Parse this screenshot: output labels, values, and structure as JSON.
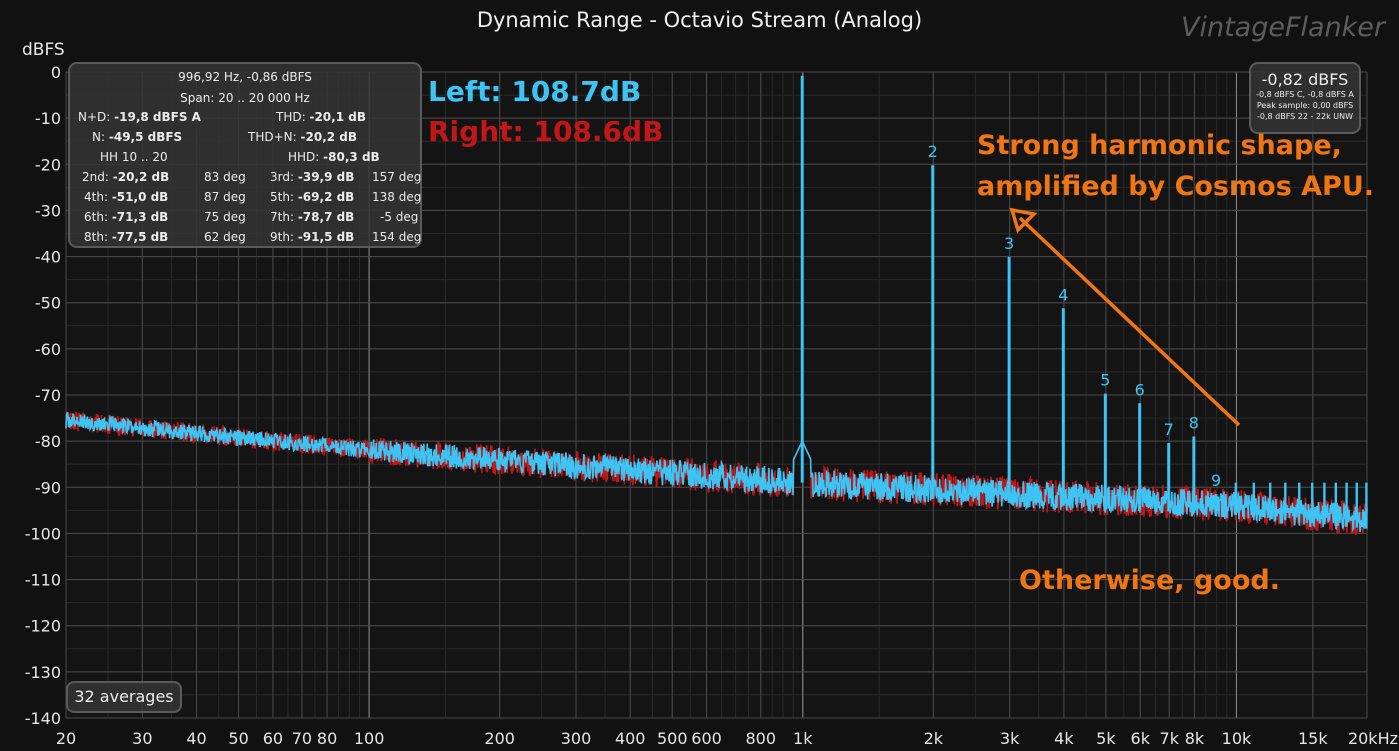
{
  "title": "Dynamic Range - Octavio Stream (Analog)",
  "watermark": "VintageFlanker",
  "info": {
    "header1": "996,92 Hz, -0,86 dBFS",
    "header2": "Span: 20 .. 20 000 Hz",
    "rows": [
      {
        "l_label": "N+D:",
        "l_value": "-19,8 dBFS A",
        "r_label": "THD:",
        "r_value": "-20,1 dB"
      },
      {
        "l_label": "N:",
        "l_value": "-49,5 dBFS",
        "r_label": "THD+N:",
        "r_value": "-20,2 dB"
      },
      {
        "l_label": "HH 10 .. 20",
        "l_value": "",
        "r_label": "HHD:",
        "r_value": "-80,3 dB"
      }
    ],
    "harmonics": [
      {
        "l_label": "2nd:",
        "l_value": "-20,2 dB",
        "l_phase": "83 deg",
        "r_label": "3rd:",
        "r_value": "-39,9 dB",
        "r_phase": "157 deg"
      },
      {
        "l_label": "4th:",
        "l_value": "-51,0 dB",
        "l_phase": "87 deg",
        "r_label": "5th:",
        "r_value": "-69,2 dB",
        "r_phase": "138 deg"
      },
      {
        "l_label": "6th:",
        "l_value": "-71,3 dB",
        "l_phase": "75 deg",
        "r_label": "7th:",
        "r_value": "-78,7 dB",
        "r_phase": "-5 deg"
      },
      {
        "l_label": "8th:",
        "l_value": "-77,5 dB",
        "l_phase": "62 deg",
        "r_label": "9th:",
        "r_value": "-91,5 dB",
        "r_phase": "154 deg"
      }
    ]
  },
  "peak": {
    "value": "-0,82 dBFS",
    "lines": [
      "-0,8 dBFS C, -0,8 dBFS A",
      "Peak sample: 0,00 dBFS",
      "-0,8 dBFS 22 - 22k UNW"
    ]
  },
  "averages": "32 averages",
  "legend": {
    "left": "Left: 108.7dB",
    "right": "Right: 108.6dB"
  },
  "annotations": {
    "line1": "Strong harmonic shape,",
    "line2": "amplified by Cosmos APU.",
    "line3": "Otherwise, good."
  },
  "colors": {
    "background": "#111111",
    "grid_major": "#4a4a4a",
    "grid_minor": "#2a2a2a",
    "left_channel": "#3cc4f4",
    "right_channel": "#c31616",
    "annotation": "#f07514"
  },
  "chart_data": {
    "type": "line",
    "title": "Dynamic Range - Octavio Stream (Analog)",
    "ylabel": "dBFS",
    "xlabel": "",
    "x_scale": "log",
    "xlim": [
      20,
      20000
    ],
    "ylim": [
      -140,
      0
    ],
    "grid": true,
    "y_ticks": [
      "0",
      "-10",
      "-20",
      "-30",
      "-40",
      "-50",
      "-60",
      "-70",
      "-80",
      "-90",
      "-100",
      "-110",
      "-120",
      "-130",
      "-140"
    ],
    "x_ticks": [
      {
        "v": 20,
        "t": "20"
      },
      {
        "v": 30,
        "t": "30"
      },
      {
        "v": 40,
        "t": "40"
      },
      {
        "v": 50,
        "t": "50"
      },
      {
        "v": 60,
        "t": "60"
      },
      {
        "v": 70,
        "t": "70"
      },
      {
        "v": 80,
        "t": "80"
      },
      {
        "v": 100,
        "t": "100"
      },
      {
        "v": 200,
        "t": "200"
      },
      {
        "v": 300,
        "t": "300"
      },
      {
        "v": 400,
        "t": "400"
      },
      {
        "v": 500,
        "t": "500"
      },
      {
        "v": 600,
        "t": "600"
      },
      {
        "v": 800,
        "t": "800"
      },
      {
        "v": 1000,
        "t": "1k"
      },
      {
        "v": 2000,
        "t": "2k"
      },
      {
        "v": 3000,
        "t": "3k"
      },
      {
        "v": 4000,
        "t": "4k"
      },
      {
        "v": 5000,
        "t": "5k"
      },
      {
        "v": 6000,
        "t": "6k"
      },
      {
        "v": 7000,
        "t": "7k"
      },
      {
        "v": 8000,
        "t": "8k"
      },
      {
        "v": 10000,
        "t": "10k"
      },
      {
        "v": 15000,
        "t": "15k"
      },
      {
        "v": 20000,
        "t": "20kHz"
      }
    ],
    "noise_floor": {
      "x": [
        20,
        100,
        1000,
        10000,
        20000
      ],
      "y": [
        -75.5,
        -82,
        -89,
        -94,
        -97
      ]
    },
    "fundamental": {
      "x": 997,
      "y": -0.8
    },
    "harmonics": [
      {
        "label": "2",
        "x": 1994,
        "y": -20.2
      },
      {
        "label": "3",
        "x": 2991,
        "y": -40.1
      },
      {
        "label": "4",
        "x": 3988,
        "y": -51.2
      },
      {
        "label": "5",
        "x": 4985,
        "y": -69.7
      },
      {
        "label": "6",
        "x": 5982,
        "y": -71.8
      },
      {
        "label": "7",
        "x": 6979,
        "y": -80.4
      },
      {
        "label": "8",
        "x": 7976,
        "y": -79.0
      },
      {
        "label": "9",
        "x": 8973,
        "y": -91.5
      }
    ],
    "high_harmonics_x": [
      9970,
      10967,
      11964,
      12961,
      13958,
      14955,
      15952,
      16949,
      17946,
      18943,
      19940
    ],
    "high_harmonics_y": -89,
    "series": [
      {
        "name": "Left: 108.7dB",
        "color": "#3cc4f4"
      },
      {
        "name": "Right: 108.6dB",
        "color": "#c31616"
      }
    ]
  }
}
